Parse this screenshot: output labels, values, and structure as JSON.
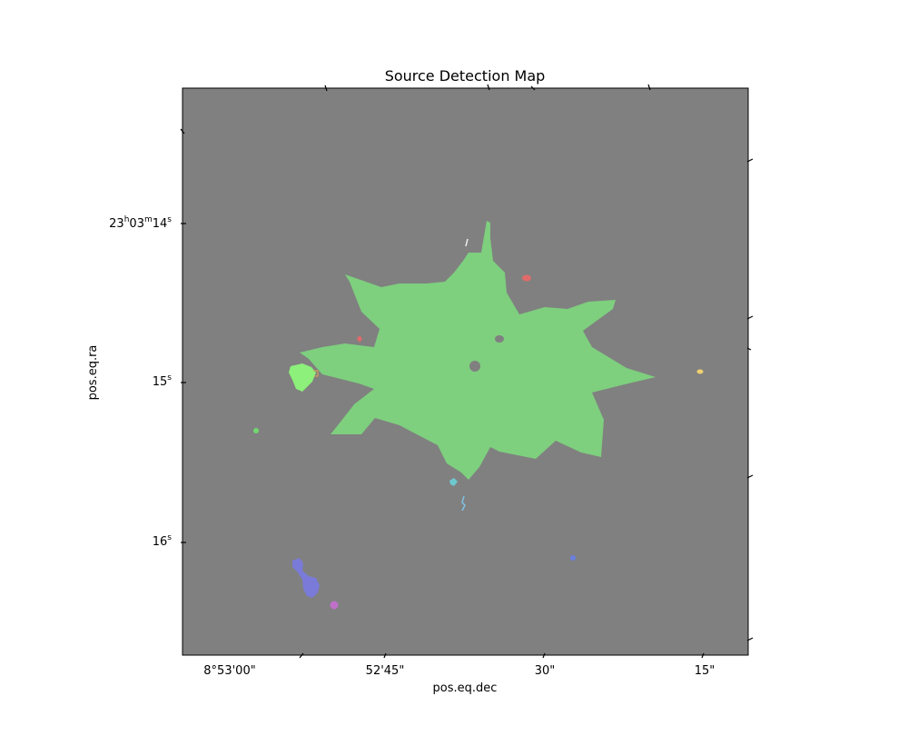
{
  "chart_data": {
    "type": "heatmap",
    "title": "Source Detection Map",
    "xlabel": "pos.eq.dec",
    "ylabel": "pos.eq.ra",
    "x_ticks": [
      "8°53'00\"",
      "52'45\"",
      "30\"",
      "15\""
    ],
    "y_ticks": [
      {
        "h": "23",
        "hsup": "h",
        "m": "03",
        "msup": "m",
        "s": "14",
        "ssup": "s"
      },
      {
        "s": "15",
        "ssup": "s"
      },
      {
        "s": "16",
        "ssup": "s"
      }
    ],
    "background_color": "#808080",
    "grid": false,
    "segments": [
      {
        "label": "central-source",
        "color": "#7ecf7e"
      },
      {
        "label": "source-green-left",
        "color": "#8cf07a"
      },
      {
        "label": "source-blue-cluster",
        "color": "#7a7ad8"
      },
      {
        "label": "source-violet",
        "color": "#c070c8"
      },
      {
        "label": "source-red-top",
        "color": "#e06a6a"
      },
      {
        "label": "source-red-small",
        "color": "#e06a6a"
      },
      {
        "label": "source-yellow-right",
        "color": "#f0d070"
      },
      {
        "label": "source-cyan",
        "color": "#6ec8d0"
      },
      {
        "label": "source-cyan-small",
        "color": "#80c0e0"
      },
      {
        "label": "source-blue-small",
        "color": "#6a80e0"
      },
      {
        "label": "source-green-small",
        "color": "#70d870"
      },
      {
        "label": "source-white",
        "color": "#f0f0f0"
      },
      {
        "label": "source-orange-small",
        "color": "#e0a050"
      }
    ]
  }
}
